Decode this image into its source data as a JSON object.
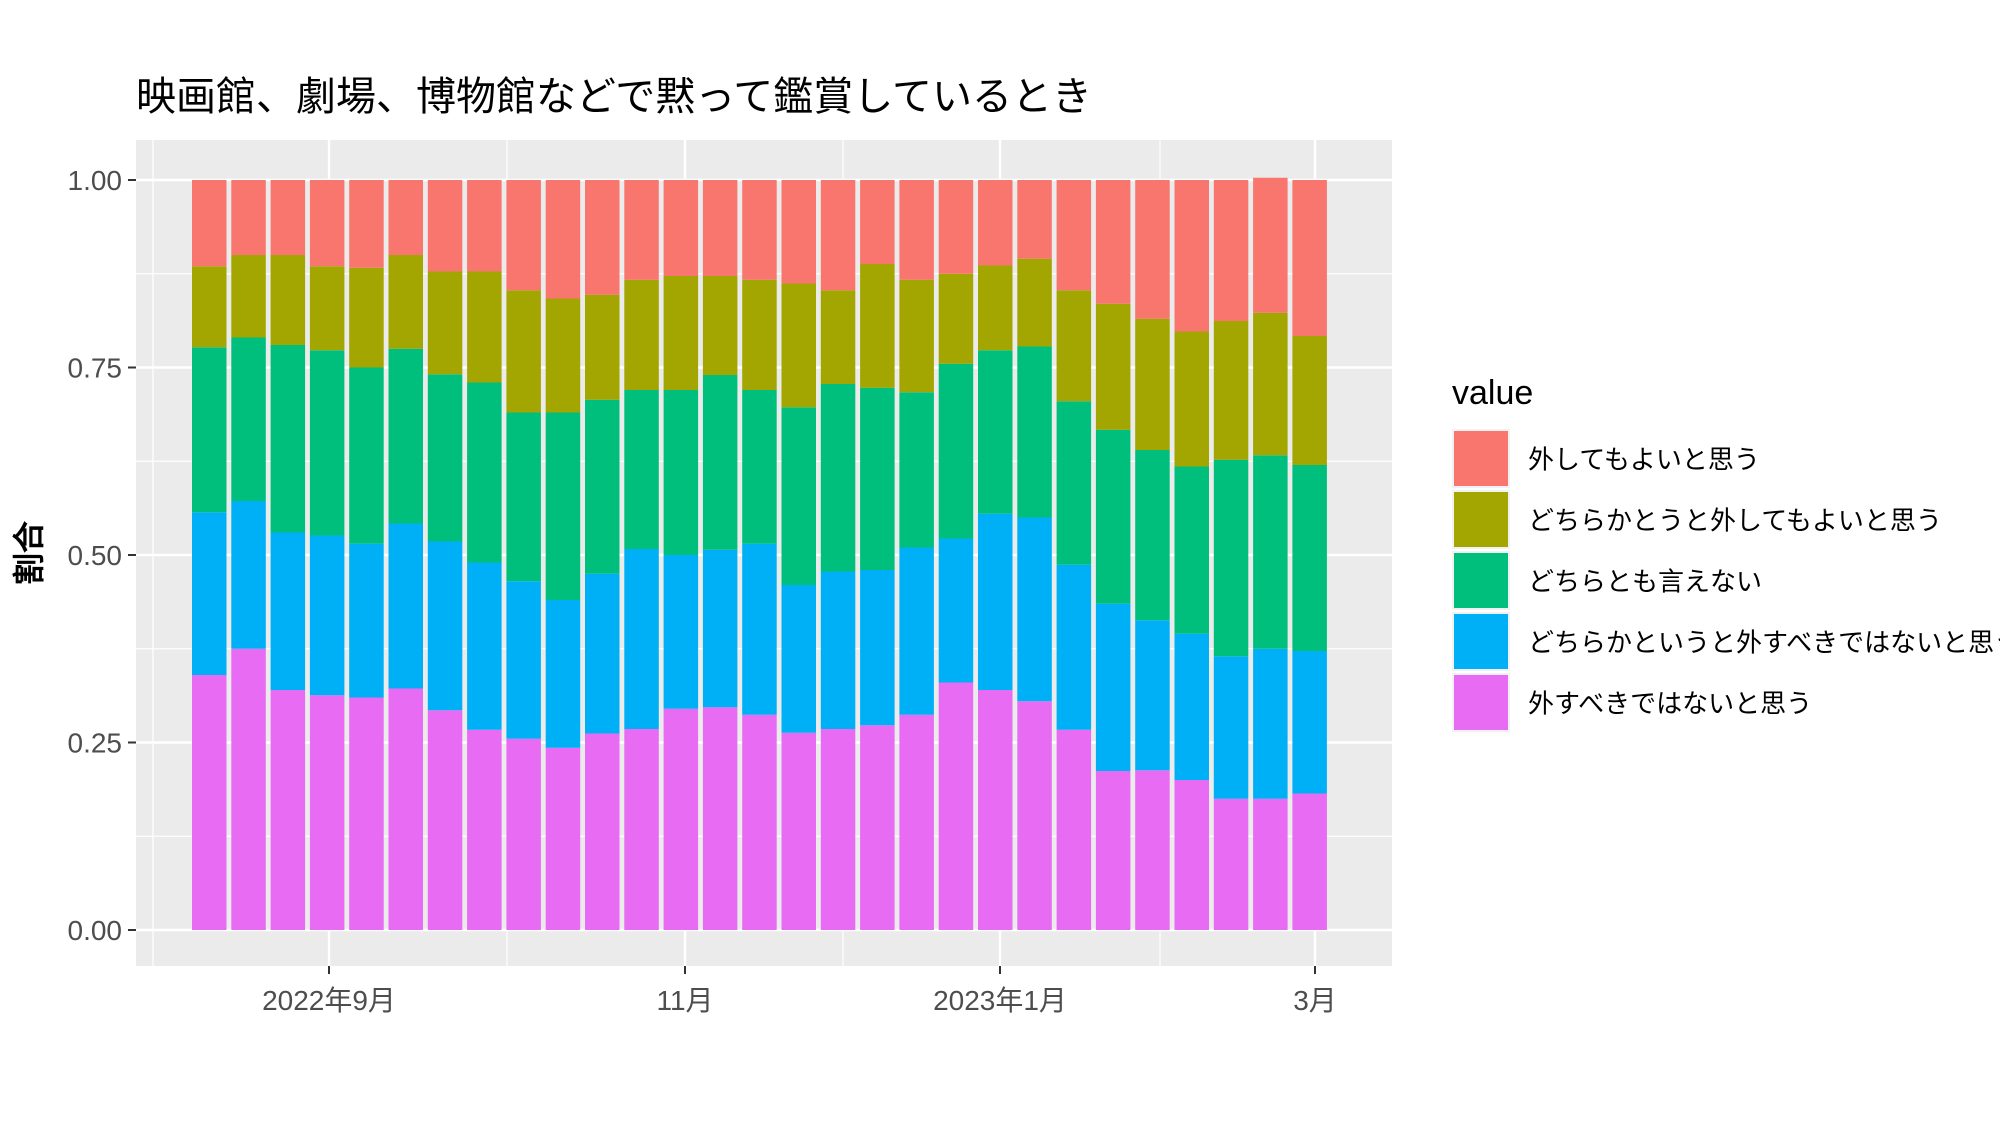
{
  "chart_data": {
    "type": "bar",
    "stacked": true,
    "title": "映画館、劇場、博物館などで黙って鑑賞しているとき",
    "ylabel": "割合",
    "xlabel": "",
    "ylim": [
      0,
      1
    ],
    "yticks": [
      "0.00",
      "0.25",
      "0.50",
      "0.75",
      "1.00"
    ],
    "xticks": [
      "2022年9月",
      "11月",
      "2023年1月",
      "3月"
    ],
    "grid": true,
    "legend": {
      "title": "value",
      "position": "right"
    },
    "n_bars": 29,
    "series": [
      {
        "name": "外すべきではないと思う",
        "color": "#E76BF3",
        "values": [
          0.34,
          0.375,
          0.32,
          0.313,
          0.31,
          0.322,
          0.293,
          0.267,
          0.255,
          0.243,
          0.262,
          0.268,
          0.295,
          0.297,
          0.287,
          0.263,
          0.268,
          0.273,
          0.287,
          0.33,
          0.32,
          0.305,
          0.267,
          0.212,
          0.213,
          0.2,
          0.175,
          0.175,
          0.182
        ]
      },
      {
        "name": "どちらかというと外すべきではないと思う",
        "color": "#00B0F6",
        "values": [
          0.217,
          0.197,
          0.21,
          0.213,
          0.205,
          0.22,
          0.225,
          0.223,
          0.21,
          0.197,
          0.213,
          0.24,
          0.205,
          0.21,
          0.228,
          0.197,
          0.21,
          0.207,
          0.223,
          0.192,
          0.235,
          0.245,
          0.22,
          0.223,
          0.2,
          0.195,
          0.19,
          0.2,
          0.19
        ]
      },
      {
        "name": "どちらとも言えない",
        "color": "#00BF7D",
        "values": [
          0.22,
          0.218,
          0.25,
          0.247,
          0.235,
          0.233,
          0.223,
          0.24,
          0.225,
          0.25,
          0.232,
          0.212,
          0.22,
          0.233,
          0.205,
          0.237,
          0.25,
          0.243,
          0.207,
          0.233,
          0.218,
          0.228,
          0.218,
          0.232,
          0.227,
          0.223,
          0.262,
          0.258,
          0.248
        ]
      },
      {
        "name": "どちらかとうと外してもよいと思う",
        "color": "#A3A500",
        "values": [
          0.108,
          0.11,
          0.12,
          0.112,
          0.133,
          0.125,
          0.137,
          0.148,
          0.163,
          0.152,
          0.14,
          0.147,
          0.152,
          0.132,
          0.147,
          0.165,
          0.125,
          0.165,
          0.15,
          0.12,
          0.113,
          0.117,
          0.148,
          0.168,
          0.175,
          0.18,
          0.185,
          0.19,
          0.172
        ]
      },
      {
        "name": "外してもよいと思う",
        "color": "#F8766D",
        "values": [
          0.115,
          0.1,
          0.1,
          0.115,
          0.117,
          0.1,
          0.122,
          0.122,
          0.147,
          0.158,
          0.153,
          0.133,
          0.128,
          0.128,
          0.133,
          0.138,
          0.147,
          0.112,
          0.133,
          0.125,
          0.114,
          0.105,
          0.147,
          0.165,
          0.185,
          0.202,
          0.188,
          0.18,
          0.208
        ]
      }
    ]
  }
}
